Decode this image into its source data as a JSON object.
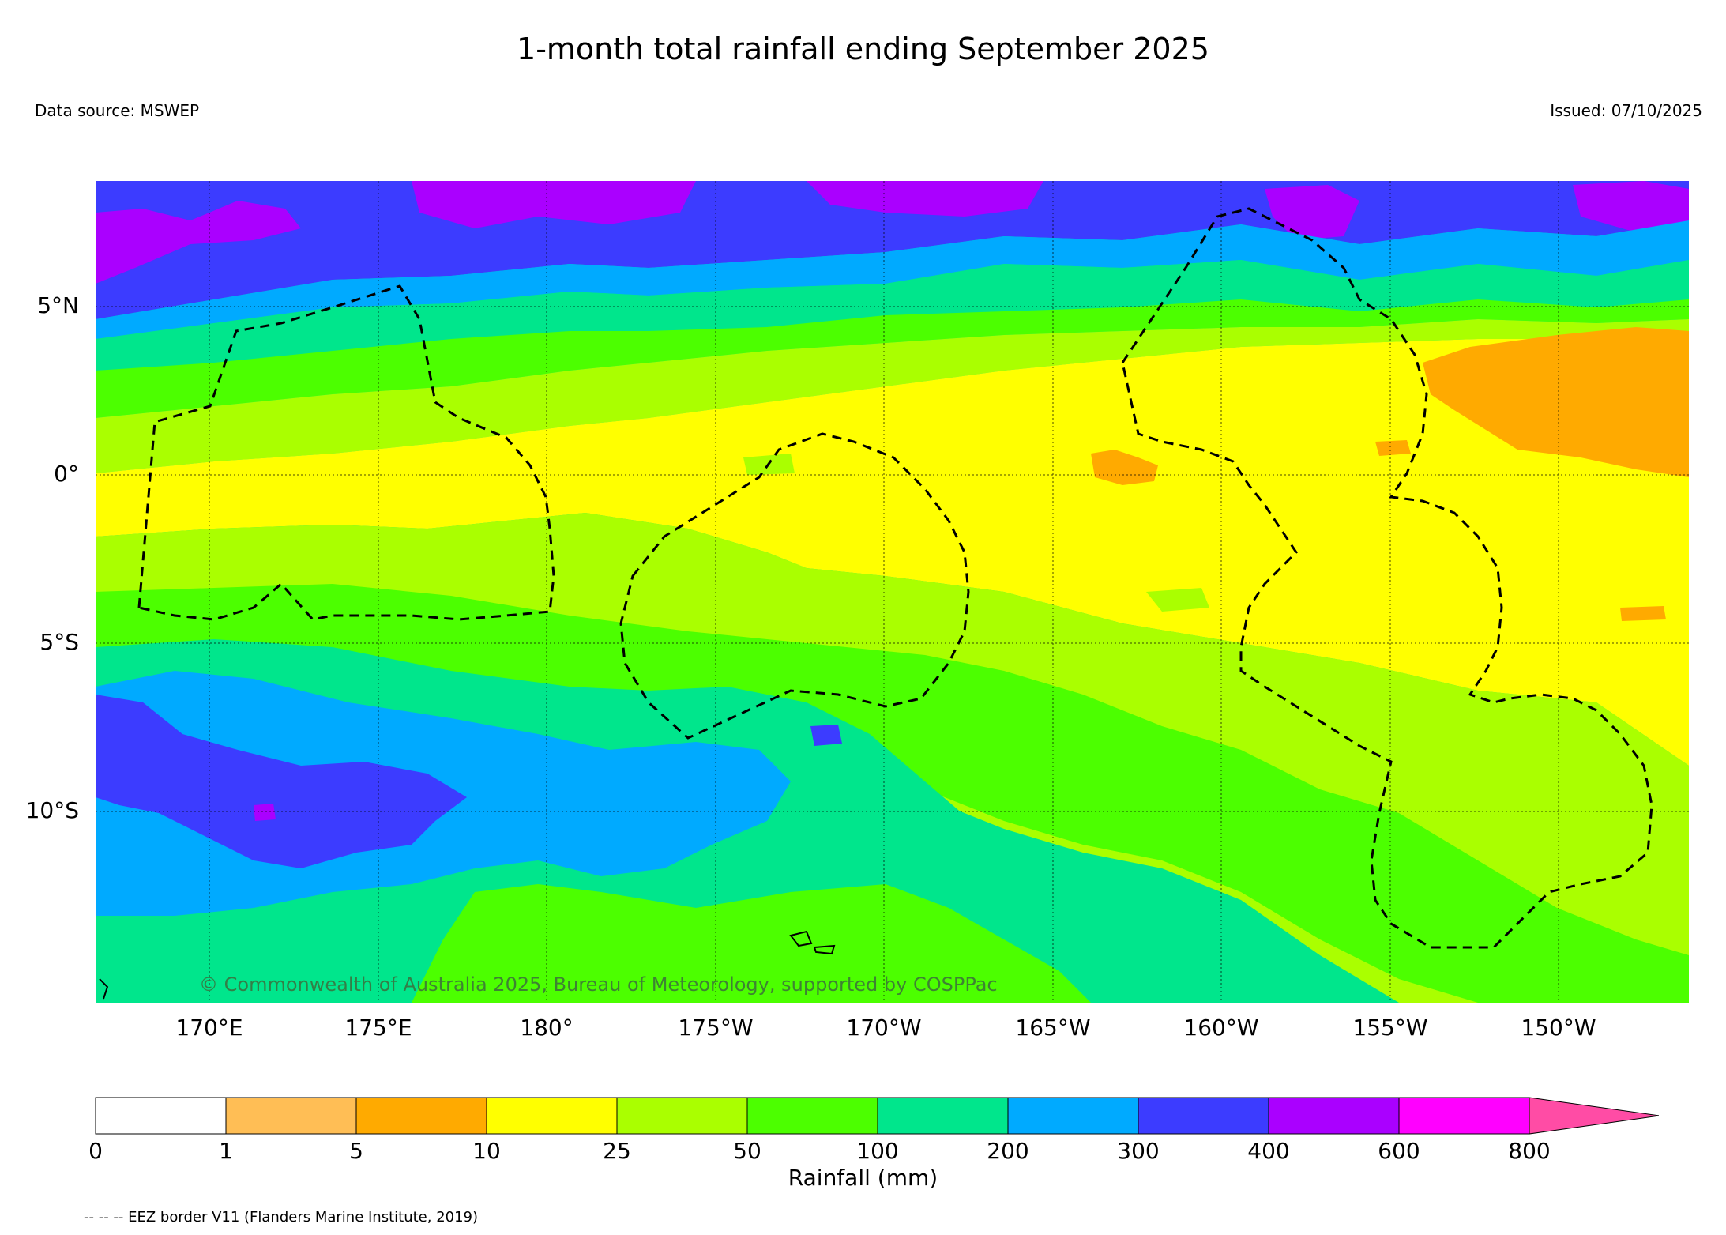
{
  "title": "1-month total rainfall ending September 2025",
  "data_source": "Data source: MSWEP",
  "issued": "Issued: 07/10/2025",
  "copyright": "© Commonwealth of Australia 2025, Bureau of Meteorology, supported by COSPPac",
  "lat_labels": [
    "5°N",
    "0°",
    "5°S",
    "10°S"
  ],
  "lon_labels": [
    "170°E",
    "175°E",
    "180°",
    "175°W",
    "170°W",
    "165°W",
    "160°W",
    "155°W",
    "150°W"
  ],
  "colorbar": {
    "title": "Rainfall (mm)",
    "ticks": [
      "0",
      "1",
      "5",
      "10",
      "25",
      "50",
      "100",
      "200",
      "300",
      "400",
      "600",
      "800"
    ],
    "colors": [
      "#ffffff",
      "#ffbe55",
      "#ffaa00",
      "#ffff00",
      "#aaff00",
      "#4cff00",
      "#00e68c",
      "#00aaff",
      "#3c3cff",
      "#aa00ff",
      "#ff00ff",
      "#ff4ca5"
    ]
  },
  "legend_note": "-- -- -- EEZ border V11 (Flanders Marine Institute, 2019)",
  "colors": {
    "zone_orange": "#ffaa00",
    "zone_yellow": "#ffff00",
    "zone_lime": "#aaff00",
    "zone_green": "#4cff00",
    "zone_teal": "#00e68c",
    "zone_blue": "#00aaff",
    "zone_indigo": "#3c3cff",
    "zone_purple": "#aa00ff"
  }
}
